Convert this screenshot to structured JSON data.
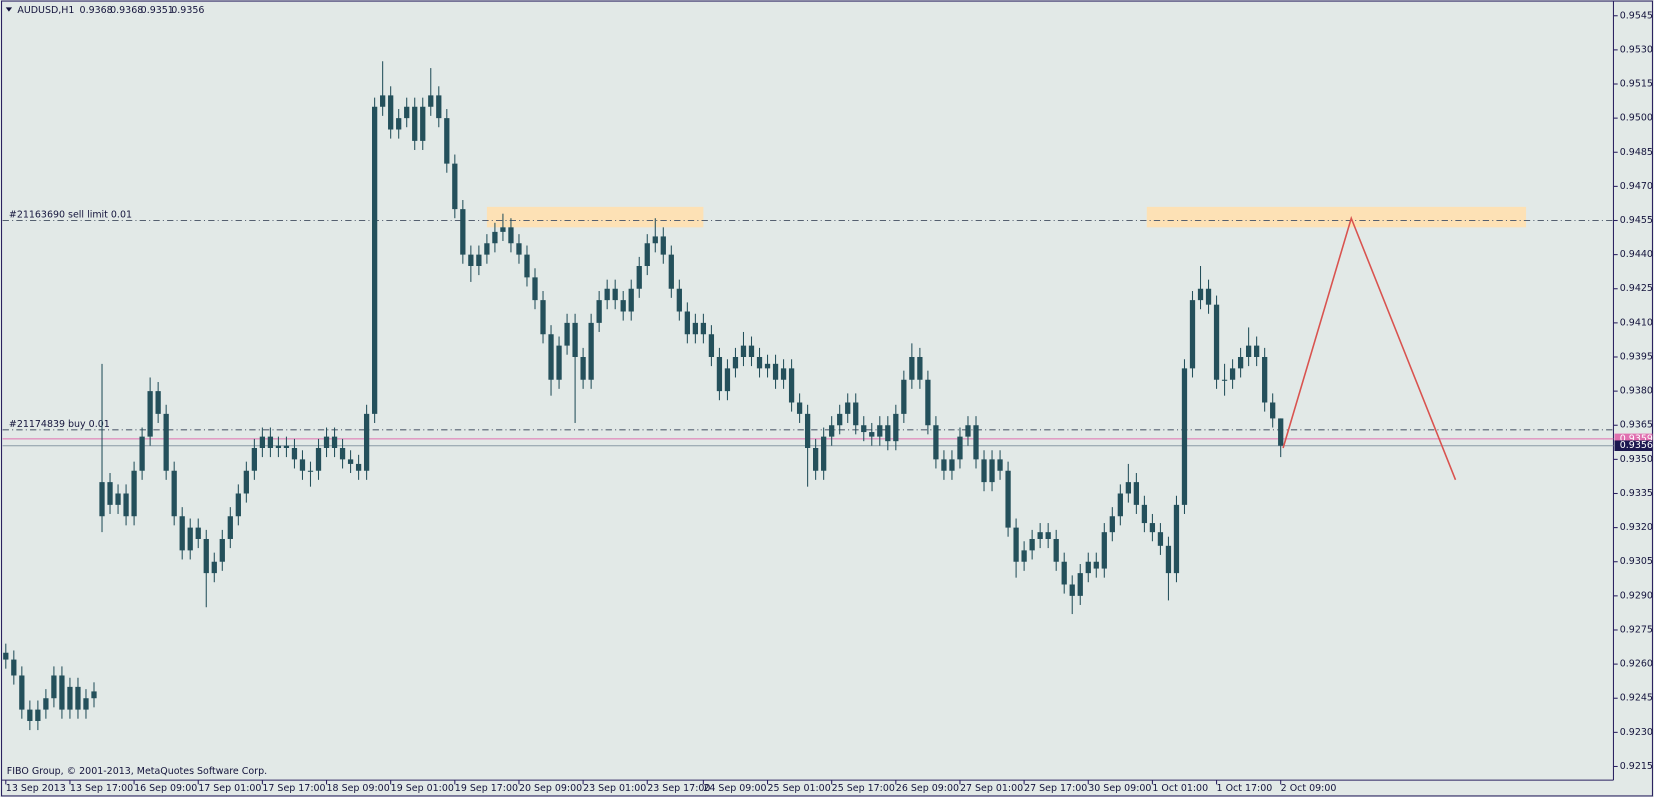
{
  "chart_data": {
    "type": "candlestick",
    "title": "AUDUSD,H1",
    "header_ohlc": [
      0.9368,
      0.9368,
      0.9351,
      0.9356
    ],
    "copyright": "FIBO Group, © 2001-2013, MetaQuotes Software Corp.",
    "candle_color": "#24505b",
    "background": "#e2e9e7",
    "ylim": [
      0.9209,
      0.9551
    ],
    "xlim": [
      -0.4,
      200.5
    ],
    "yticks": [
      0.9545,
      {
        "value": 0.953,
        "label": "0.9530"
      },
      0.9515,
      {
        "value": 0.95,
        "label": "0.9500"
      },
      0.9485,
      {
        "value": 0.947,
        "label": "0.9470"
      },
      0.9455,
      {
        "value": 0.944,
        "label": "0.9440"
      },
      0.9425,
      {
        "value": 0.941,
        "label": "0.9410"
      },
      0.9395,
      {
        "value": 0.938,
        "label": "0.9380"
      },
      0.9365,
      {
        "value": 0.935,
        "label": "0.9350"
      },
      0.9335,
      {
        "value": 0.932,
        "label": "0.9320"
      },
      0.9305,
      {
        "value": 0.929,
        "label": "0.9290"
      },
      0.9275,
      {
        "value": 0.926,
        "label": "0.9260"
      },
      0.9245,
      {
        "value": 0.923,
        "label": "0.9230"
      },
      0.9215
    ],
    "categories": [
      "13 Sep 2013",
      null,
      null,
      null,
      null,
      null,
      null,
      null,
      "13 Sep 17:00",
      null,
      null,
      null,
      null,
      null,
      null,
      null,
      "16 Sep 09:00",
      null,
      null,
      null,
      null,
      null,
      null,
      null,
      "17 Sep 01:00",
      null,
      null,
      null,
      null,
      null,
      null,
      null,
      "17 Sep 17:00",
      null,
      null,
      null,
      null,
      null,
      null,
      null,
      "18 Sep 09:00",
      null,
      null,
      null,
      null,
      null,
      null,
      null,
      "19 Sep 01:00",
      null,
      null,
      null,
      null,
      null,
      null,
      null,
      "19 Sep 17:00",
      null,
      null,
      null,
      null,
      null,
      null,
      null,
      "20 Sep 09:00",
      null,
      null,
      null,
      null,
      null,
      null,
      null,
      "23 Sep 01:00",
      null,
      null,
      null,
      null,
      null,
      null,
      null,
      "23 Sep 17:00",
      null,
      null,
      null,
      null,
      null,
      null,
      "24 Sep 09:00",
      null,
      null,
      null,
      null,
      null,
      null,
      null,
      "25 Sep 01:00",
      null,
      null,
      null,
      null,
      null,
      null,
      null,
      "25 Sep 17:00",
      null,
      null,
      null,
      null,
      null,
      null,
      null,
      "26 Sep 09:00",
      null,
      null,
      null,
      null,
      null,
      null,
      null,
      "27 Sep 01:00",
      null,
      null,
      null,
      null,
      null,
      null,
      null,
      "27 Sep 17:00",
      null,
      null,
      null,
      null,
      null,
      null,
      null,
      "30 Sep 09:00",
      null,
      null,
      null,
      null,
      null,
      null,
      null,
      "1 Oct 01:00",
      null,
      null,
      null,
      null,
      null,
      null,
      null,
      "1 Oct 17:00",
      null,
      null,
      null,
      null,
      null,
      null,
      null,
      "2 Oct 09:00"
    ],
    "ohlc": [
      [
        0.9265,
        0.9269,
        0.9258,
        0.9262
      ],
      [
        0.9262,
        0.9266,
        0.9251,
        0.9255
      ],
      [
        0.9255,
        0.9259,
        0.9236,
        0.924
      ],
      [
        0.924,
        0.9244,
        0.9231,
        0.9235
      ],
      [
        0.9235,
        0.9244,
        0.9231,
        0.924
      ],
      [
        0.924,
        0.9249,
        0.9236,
        0.9245
      ],
      [
        0.9245,
        0.9259,
        0.9241,
        0.9255
      ],
      [
        0.9255,
        0.9259,
        0.9236,
        0.924
      ],
      [
        0.924,
        0.9254,
        0.9236,
        0.925
      ],
      [
        0.925,
        0.9254,
        0.9236,
        0.924
      ],
      [
        0.924,
        0.9249,
        0.9236,
        0.9245
      ],
      [
        0.9245,
        0.9252,
        0.9241,
        0.9248
      ],
      [
        0.9325,
        0.9392,
        0.9318,
        0.934
      ],
      [
        0.934,
        0.9344,
        0.9326,
        0.933
      ],
      [
        0.933,
        0.9339,
        0.9326,
        0.9335
      ],
      [
        0.9335,
        0.9339,
        0.9321,
        0.9325
      ],
      [
        0.9325,
        0.9349,
        0.9321,
        0.9345
      ],
      [
        0.9345,
        0.9364,
        0.9341,
        0.936
      ],
      [
        0.936,
        0.9386,
        0.9356,
        0.938
      ],
      [
        0.938,
        0.9384,
        0.9366,
        0.937
      ],
      [
        0.937,
        0.9374,
        0.9341,
        0.9345
      ],
      [
        0.9345,
        0.9349,
        0.9321,
        0.9325
      ],
      [
        0.9325,
        0.9329,
        0.9306,
        0.931
      ],
      [
        0.931,
        0.9324,
        0.9306,
        0.932
      ],
      [
        0.932,
        0.9324,
        0.9311,
        0.9315
      ],
      [
        0.9315,
        0.9319,
        0.9285,
        0.93
      ],
      [
        0.93,
        0.9309,
        0.9296,
        0.9305
      ],
      [
        0.9305,
        0.9319,
        0.9301,
        0.9315
      ],
      [
        0.9315,
        0.9329,
        0.9311,
        0.9325
      ],
      [
        0.9325,
        0.9339,
        0.9321,
        0.9335
      ],
      [
        0.9335,
        0.9349,
        0.9331,
        0.9345
      ],
      [
        0.9345,
        0.9359,
        0.9341,
        0.9355
      ],
      [
        0.9355,
        0.9364,
        0.9351,
        0.936
      ],
      [
        0.936,
        0.9364,
        0.9351,
        0.9355
      ],
      [
        0.9355,
        0.936,
        0.9351,
        0.9356
      ],
      [
        0.9356,
        0.936,
        0.9351,
        0.9355
      ],
      [
        0.9355,
        0.9359,
        0.9346,
        0.935
      ],
      [
        0.935,
        0.9354,
        0.9341,
        0.9345
      ],
      [
        0.9345,
        0.9349,
        0.9338,
        0.9345
      ],
      [
        0.9345,
        0.9359,
        0.9341,
        0.9355
      ],
      [
        0.9355,
        0.9364,
        0.9351,
        0.936
      ],
      [
        0.936,
        0.9364,
        0.9351,
        0.9355
      ],
      [
        0.9355,
        0.9359,
        0.9346,
        0.935
      ],
      [
        0.935,
        0.9354,
        0.9344,
        0.9348
      ],
      [
        0.9348,
        0.9352,
        0.9341,
        0.9345
      ],
      [
        0.9345,
        0.9374,
        0.9341,
        0.937
      ],
      [
        0.937,
        0.9509,
        0.9366,
        0.9505
      ],
      [
        0.9505,
        0.9525,
        0.9501,
        0.951
      ],
      [
        0.951,
        0.9514,
        0.9491,
        0.9495
      ],
      [
        0.9495,
        0.9504,
        0.9491,
        0.95
      ],
      [
        0.95,
        0.9509,
        0.9496,
        0.9505
      ],
      [
        0.9505,
        0.9509,
        0.9486,
        0.949
      ],
      [
        0.949,
        0.9509,
        0.9486,
        0.9505
      ],
      [
        0.9505,
        0.9522,
        0.9501,
        0.951
      ],
      [
        0.951,
        0.9514,
        0.9496,
        0.95
      ],
      [
        0.95,
        0.9504,
        0.9476,
        0.948
      ],
      [
        0.948,
        0.9484,
        0.9456,
        0.946
      ],
      [
        0.946,
        0.9464,
        0.9436,
        0.944
      ],
      [
        0.944,
        0.9444,
        0.9428,
        0.9435
      ],
      [
        0.9435,
        0.9444,
        0.9431,
        0.944
      ],
      [
        0.944,
        0.9449,
        0.9436,
        0.9445
      ],
      [
        0.9445,
        0.9454,
        0.9441,
        0.945
      ],
      [
        0.945,
        0.9458,
        0.9446,
        0.9452
      ],
      [
        0.9452,
        0.9456,
        0.9441,
        0.9445
      ],
      [
        0.9445,
        0.9449,
        0.9436,
        0.944
      ],
      [
        0.944,
        0.9444,
        0.9426,
        0.943
      ],
      [
        0.943,
        0.9434,
        0.9416,
        0.942
      ],
      [
        0.942,
        0.9424,
        0.9401,
        0.9405
      ],
      [
        0.9405,
        0.9409,
        0.9378,
        0.9385
      ],
      [
        0.9385,
        0.9404,
        0.9381,
        0.94
      ],
      [
        0.94,
        0.9414,
        0.9396,
        0.941
      ],
      [
        0.941,
        0.9414,
        0.9366,
        0.9395
      ],
      [
        0.9395,
        0.9399,
        0.9381,
        0.9385
      ],
      [
        0.9385,
        0.9414,
        0.9381,
        0.941
      ],
      [
        0.941,
        0.9424,
        0.9406,
        0.942
      ],
      [
        0.942,
        0.9429,
        0.9416,
        0.9425
      ],
      [
        0.9425,
        0.9429,
        0.9416,
        0.942
      ],
      [
        0.942,
        0.9424,
        0.9411,
        0.9415
      ],
      [
        0.9415,
        0.9429,
        0.9411,
        0.9425
      ],
      [
        0.9425,
        0.9439,
        0.9421,
        0.9435
      ],
      [
        0.9435,
        0.9449,
        0.9431,
        0.9445
      ],
      [
        0.9445,
        0.9456,
        0.9441,
        0.9448
      ],
      [
        0.9448,
        0.9452,
        0.9436,
        0.944
      ],
      [
        0.944,
        0.9444,
        0.9421,
        0.9425
      ],
      [
        0.9425,
        0.9429,
        0.9411,
        0.9415
      ],
      [
        0.9415,
        0.9419,
        0.9401,
        0.9405
      ],
      [
        0.9405,
        0.9414,
        0.9401,
        0.941
      ],
      [
        0.941,
        0.9414,
        0.9401,
        0.9405
      ],
      [
        0.9405,
        0.9409,
        0.9391,
        0.9395
      ],
      [
        0.9395,
        0.9399,
        0.9376,
        0.938
      ],
      [
        0.938,
        0.9394,
        0.9376,
        0.939
      ],
      [
        0.939,
        0.9399,
        0.9386,
        0.9395
      ],
      [
        0.9395,
        0.9406,
        0.9391,
        0.94
      ],
      [
        0.94,
        0.9404,
        0.9391,
        0.9395
      ],
      [
        0.9395,
        0.9399,
        0.9386,
        0.939
      ],
      [
        0.939,
        0.9396,
        0.9386,
        0.9392
      ],
      [
        0.9392,
        0.9396,
        0.9381,
        0.9385
      ],
      [
        0.9385,
        0.9394,
        0.9381,
        0.939
      ],
      [
        0.939,
        0.9394,
        0.9371,
        0.9375
      ],
      [
        0.9375,
        0.9379,
        0.9366,
        0.937
      ],
      [
        0.937,
        0.9374,
        0.9338,
        0.9355
      ],
      [
        0.9355,
        0.9359,
        0.9341,
        0.9345
      ],
      [
        0.9345,
        0.9364,
        0.9341,
        0.936
      ],
      [
        0.936,
        0.9369,
        0.9356,
        0.9365
      ],
      [
        0.9365,
        0.9374,
        0.9361,
        0.937
      ],
      [
        0.937,
        0.9379,
        0.9366,
        0.9375
      ],
      [
        0.9375,
        0.9379,
        0.9361,
        0.9365
      ],
      [
        0.9365,
        0.9369,
        0.9358,
        0.9362
      ],
      [
        0.9362,
        0.9366,
        0.9356,
        0.936
      ],
      [
        0.936,
        0.9369,
        0.9356,
        0.9365
      ],
      [
        0.9365,
        0.9369,
        0.9354,
        0.9358
      ],
      [
        0.9358,
        0.9374,
        0.9354,
        0.937
      ],
      [
        0.937,
        0.9389,
        0.9366,
        0.9385
      ],
      [
        0.9385,
        0.9401,
        0.9381,
        0.9395
      ],
      [
        0.9395,
        0.9399,
        0.9381,
        0.9385
      ],
      [
        0.9385,
        0.9389,
        0.9361,
        0.9365
      ],
      [
        0.9365,
        0.9369,
        0.9346,
        0.935
      ],
      [
        0.935,
        0.9354,
        0.9341,
        0.9345
      ],
      [
        0.9345,
        0.9354,
        0.9341,
        0.935
      ],
      [
        0.935,
        0.9364,
        0.9346,
        0.936
      ],
      [
        0.936,
        0.9369,
        0.9356,
        0.9365
      ],
      [
        0.9365,
        0.9369,
        0.9346,
        0.935
      ],
      [
        0.935,
        0.9354,
        0.9336,
        0.934
      ],
      [
        0.934,
        0.9354,
        0.9336,
        0.935
      ],
      [
        0.935,
        0.9354,
        0.9341,
        0.9345
      ],
      [
        0.9345,
        0.9349,
        0.9316,
        0.932
      ],
      [
        0.932,
        0.9324,
        0.9298,
        0.9305
      ],
      [
        0.9305,
        0.9314,
        0.9301,
        0.931
      ],
      [
        0.931,
        0.9319,
        0.9306,
        0.9315
      ],
      [
        0.9315,
        0.9322,
        0.9311,
        0.9318
      ],
      [
        0.9318,
        0.9322,
        0.9311,
        0.9315
      ],
      [
        0.9315,
        0.9319,
        0.9301,
        0.9305
      ],
      [
        0.9305,
        0.9309,
        0.9291,
        0.9295
      ],
      [
        0.9295,
        0.9299,
        0.9282,
        0.929
      ],
      [
        0.929,
        0.9304,
        0.9286,
        0.93
      ],
      [
        0.93,
        0.9309,
        0.9296,
        0.9305
      ],
      [
        0.9305,
        0.9309,
        0.9298,
        0.9302
      ],
      [
        0.9302,
        0.9322,
        0.9298,
        0.9318
      ],
      [
        0.9318,
        0.9329,
        0.9314,
        0.9325
      ],
      [
        0.9325,
        0.9339,
        0.9321,
        0.9335
      ],
      [
        0.9335,
        0.9348,
        0.9331,
        0.934
      ],
      [
        0.934,
        0.9344,
        0.9326,
        0.933
      ],
      [
        0.933,
        0.9334,
        0.9318,
        0.9322
      ],
      [
        0.9322,
        0.9326,
        0.9314,
        0.9318
      ],
      [
        0.9318,
        0.9322,
        0.9308,
        0.9312
      ],
      [
        0.9312,
        0.9316,
        0.9288,
        0.93
      ],
      [
        0.93,
        0.9334,
        0.9296,
        0.933
      ],
      [
        0.933,
        0.9394,
        0.9326,
        0.939
      ],
      [
        0.939,
        0.9424,
        0.9386,
        0.942
      ],
      [
        0.942,
        0.9435,
        0.9416,
        0.9425
      ],
      [
        0.9425,
        0.9429,
        0.9414,
        0.9418
      ],
      [
        0.9418,
        0.9422,
        0.9381,
        0.9385
      ],
      [
        0.9385,
        0.9392,
        0.9378,
        0.9385
      ],
      [
        0.9385,
        0.9394,
        0.9381,
        0.939
      ],
      [
        0.939,
        0.9399,
        0.9386,
        0.9395
      ],
      [
        0.9395,
        0.9408,
        0.9391,
        0.94
      ],
      [
        0.94,
        0.9404,
        0.9391,
        0.9395
      ],
      [
        0.9395,
        0.9399,
        0.9371,
        0.9375
      ],
      [
        0.9375,
        0.9379,
        0.9364,
        0.9368
      ],
      [
        0.9368,
        0.9368,
        0.9351,
        0.9356
      ]
    ],
    "order_lines": [
      {
        "label": "#21163690 sell limit 0.01",
        "price": 0.9455
      },
      {
        "label": "#21174839 buy 0.01",
        "price": 0.9363
      }
    ],
    "bid": 0.9356,
    "ask": 0.9359,
    "zones": [
      {
        "x": [
          60,
          87
        ],
        "y": [
          0.9452,
          0.9461
        ]
      },
      {
        "x": [
          142.3,
          189.6
        ],
        "y": [
          0.9452,
          0.9461
        ]
      }
    ],
    "zone_color": "#fde1b5",
    "trendline": {
      "color": "#d9534f",
      "x": [
        159.3,
        167.8,
        180.8
      ],
      "y": [
        0.9355,
        0.9456,
        0.9341
      ]
    }
  }
}
